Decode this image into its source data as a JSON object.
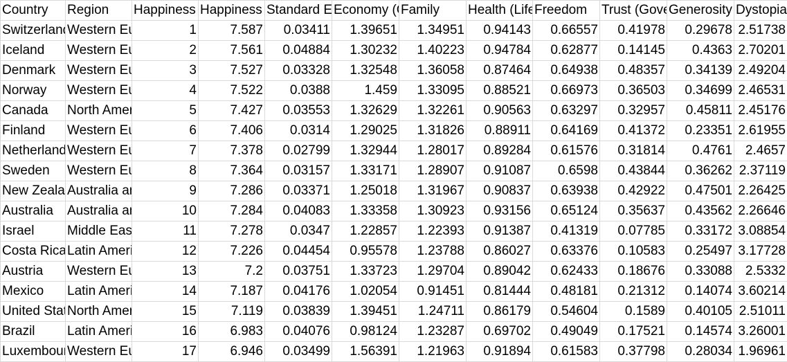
{
  "sheet": {
    "headers": [
      "Country",
      "Region",
      "Happiness Rank",
      "Happiness Score",
      "Standard Error",
      "Economy (GDP per Capita)",
      "Family",
      "Health (Life Expectancy)",
      "Freedom",
      "Trust (Government Corruption)",
      "Generosity",
      "Dystopia Residual"
    ],
    "rows": [
      [
        "Switzerland",
        "Western Europe",
        "1",
        "7.587",
        "0.03411",
        "1.39651",
        "1.34951",
        "0.94143",
        "0.66557",
        "0.41978",
        "0.29678",
        "2.51738"
      ],
      [
        "Iceland",
        "Western Europe",
        "2",
        "7.561",
        "0.04884",
        "1.30232",
        "1.40223",
        "0.94784",
        "0.62877",
        "0.14145",
        "0.4363",
        "2.70201"
      ],
      [
        "Denmark",
        "Western Europe",
        "3",
        "7.527",
        "0.03328",
        "1.32548",
        "1.36058",
        "0.87464",
        "0.64938",
        "0.48357",
        "0.34139",
        "2.49204"
      ],
      [
        "Norway",
        "Western Europe",
        "4",
        "7.522",
        "0.0388",
        "1.459",
        "1.33095",
        "0.88521",
        "0.66973",
        "0.36503",
        "0.34699",
        "2.46531"
      ],
      [
        "Canada",
        "North America",
        "5",
        "7.427",
        "0.03553",
        "1.32629",
        "1.32261",
        "0.90563",
        "0.63297",
        "0.32957",
        "0.45811",
        "2.45176"
      ],
      [
        "Finland",
        "Western Europe",
        "6",
        "7.406",
        "0.0314",
        "1.29025",
        "1.31826",
        "0.88911",
        "0.64169",
        "0.41372",
        "0.23351",
        "2.61955"
      ],
      [
        "Netherlands",
        "Western Europe",
        "7",
        "7.378",
        "0.02799",
        "1.32944",
        "1.28017",
        "0.89284",
        "0.61576",
        "0.31814",
        "0.4761",
        "2.4657"
      ],
      [
        "Sweden",
        "Western Europe",
        "8",
        "7.364",
        "0.03157",
        "1.33171",
        "1.28907",
        "0.91087",
        "0.6598",
        "0.43844",
        "0.36262",
        "2.37119"
      ],
      [
        "New Zealand",
        "Australia and New Zealand",
        "9",
        "7.286",
        "0.03371",
        "1.25018",
        "1.31967",
        "0.90837",
        "0.63938",
        "0.42922",
        "0.47501",
        "2.26425"
      ],
      [
        "Australia",
        "Australia and New Zealand",
        "10",
        "7.284",
        "0.04083",
        "1.33358",
        "1.30923",
        "0.93156",
        "0.65124",
        "0.35637",
        "0.43562",
        "2.26646"
      ],
      [
        "Israel",
        "Middle East and Northern Africa",
        "11",
        "7.278",
        "0.0347",
        "1.22857",
        "1.22393",
        "0.91387",
        "0.41319",
        "0.07785",
        "0.33172",
        "3.08854"
      ],
      [
        "Costa Rica",
        "Latin America and Caribbean",
        "12",
        "7.226",
        "0.04454",
        "0.95578",
        "1.23788",
        "0.86027",
        "0.63376",
        "0.10583",
        "0.25497",
        "3.17728"
      ],
      [
        "Austria",
        "Western Europe",
        "13",
        "7.2",
        "0.03751",
        "1.33723",
        "1.29704",
        "0.89042",
        "0.62433",
        "0.18676",
        "0.33088",
        "2.5332"
      ],
      [
        "Mexico",
        "Latin America and Caribbean",
        "14",
        "7.187",
        "0.04176",
        "1.02054",
        "0.91451",
        "0.81444",
        "0.48181",
        "0.21312",
        "0.14074",
        "3.60214"
      ],
      [
        "United States",
        "North America",
        "15",
        "7.119",
        "0.03839",
        "1.39451",
        "1.24711",
        "0.86179",
        "0.54604",
        "0.1589",
        "0.40105",
        "2.51011"
      ],
      [
        "Brazil",
        "Latin America and Caribbean",
        "16",
        "6.983",
        "0.04076",
        "0.98124",
        "1.23287",
        "0.69702",
        "0.49049",
        "0.17521",
        "0.14574",
        "3.26001"
      ],
      [
        "Luxembourg",
        "Western Europe",
        "17",
        "6.946",
        "0.03499",
        "1.56391",
        "1.21963",
        "0.91894",
        "0.61583",
        "0.37798",
        "0.28034",
        "1.96961"
      ]
    ]
  }
}
